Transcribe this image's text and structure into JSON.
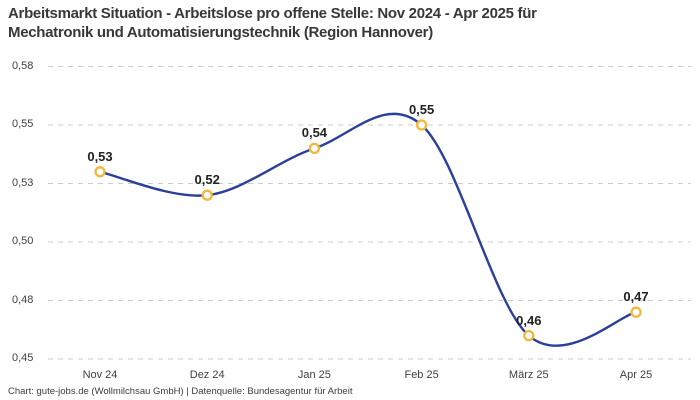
{
  "title": {
    "line1": "Arbeitsmarkt Situation - Arbeitslose pro offene Stelle: Nov 2024 - Apr 2025 für",
    "line2": "Mechatronik und Automatisierungstechnik (Region Hannover)"
  },
  "footer": {
    "text": "Chart: gute-jobs.de (Wollmilchsau GmbH) | Datenquelle: Bundesagentur für Arbeit"
  },
  "chart_data": {
    "type": "line",
    "title": "Arbeitsmarkt Situation - Arbeitslose pro offene Stelle: Nov 2024 - Apr 2025 für Mechatronik und Automatisierungstechnik (Region Hannover)",
    "categories": [
      "Nov 24",
      "Dez 24",
      "Jan 25",
      "Feb 25",
      "März 25",
      "Apr 25"
    ],
    "values": [
      0.53,
      0.52,
      0.54,
      0.55,
      0.46,
      0.47
    ],
    "value_labels": [
      "0,53",
      "0,52",
      "0,54",
      "0,55",
      "0,46",
      "0,47"
    ],
    "y_ticks": [
      0.575,
      0.55,
      0.525,
      0.5,
      0.475,
      0.45
    ],
    "y_tick_labels": [
      "0,58",
      "0,55",
      "0,53",
      "0,50",
      "0,48",
      "0,45"
    ],
    "ylim": [
      0.45,
      0.575
    ],
    "xlabel": "",
    "ylabel": "",
    "grid": "horizontal-dashed",
    "legend": "none",
    "line_color": "#2b3f9c",
    "marker_fill": "#ffffff",
    "marker_color": "#f3b73a",
    "grid_color": "#cccccc",
    "label_color": "#212121"
  }
}
